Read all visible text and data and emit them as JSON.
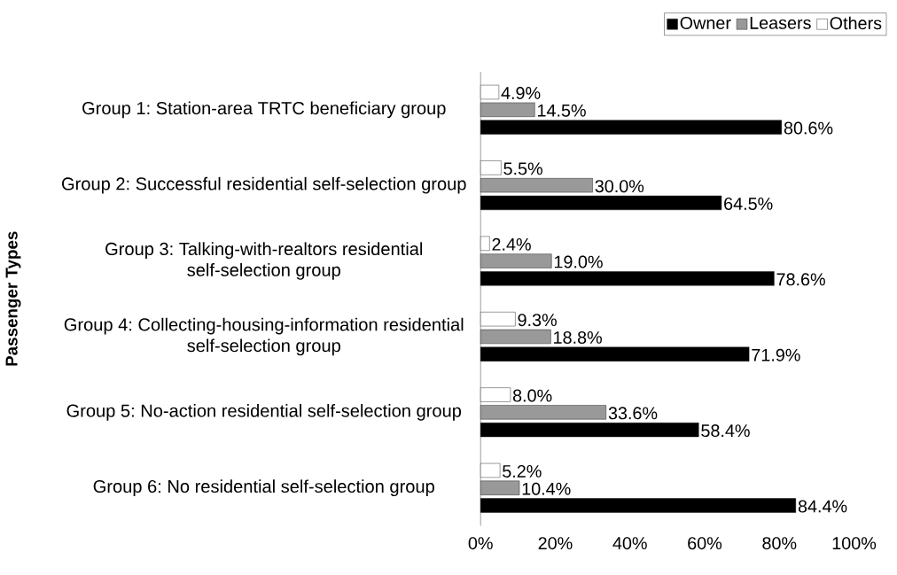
{
  "chart_data": {
    "type": "bar",
    "orientation": "horizontal",
    "ylabel": "Passenger Types",
    "categories": [
      "Group 1: Station-area TRTC beneficiary group",
      "Group 2: Successful residential self-selection group",
      "Group 3: Talking-with-realtors residential self-selection group",
      "Group 4: Collecting-housing-information residential self-selection group",
      "Group 5: No-action residential self-selection group",
      "Group 6: No residential self-selection group"
    ],
    "series": [
      {
        "name": "Owner",
        "color": "#000000",
        "values": [
          80.6,
          64.5,
          78.6,
          71.9,
          58.4,
          84.4
        ],
        "value_labels": [
          "80.6%",
          "64.5%",
          "78.6%",
          "71.9%",
          "58.4%",
          "84.4%"
        ]
      },
      {
        "name": "Leasers",
        "color": "#999999",
        "values": [
          14.5,
          30.0,
          19.0,
          18.8,
          33.6,
          10.4
        ],
        "value_labels": [
          "14.5%",
          "30.0%",
          "19.0%",
          "18.8%",
          "33.6%",
          "10.4%"
        ]
      },
      {
        "name": "Others",
        "color": "#ffffff",
        "values": [
          4.9,
          5.5,
          2.4,
          9.3,
          8.0,
          5.2
        ],
        "value_labels": [
          "4.9%",
          "5.5%",
          "2.4%",
          "9.3%",
          "8.0%",
          "5.2%"
        ]
      }
    ],
    "xlim": [
      0,
      100
    ],
    "xticks": [
      {
        "value": 0,
        "label": "0%"
      },
      {
        "value": 20,
        "label": "20%"
      },
      {
        "value": 40,
        "label": "40%"
      },
      {
        "value": 60,
        "label": "60%"
      },
      {
        "value": 80,
        "label": "80%"
      },
      {
        "value": 100,
        "label": "100%"
      }
    ],
    "legend": "top right"
  }
}
